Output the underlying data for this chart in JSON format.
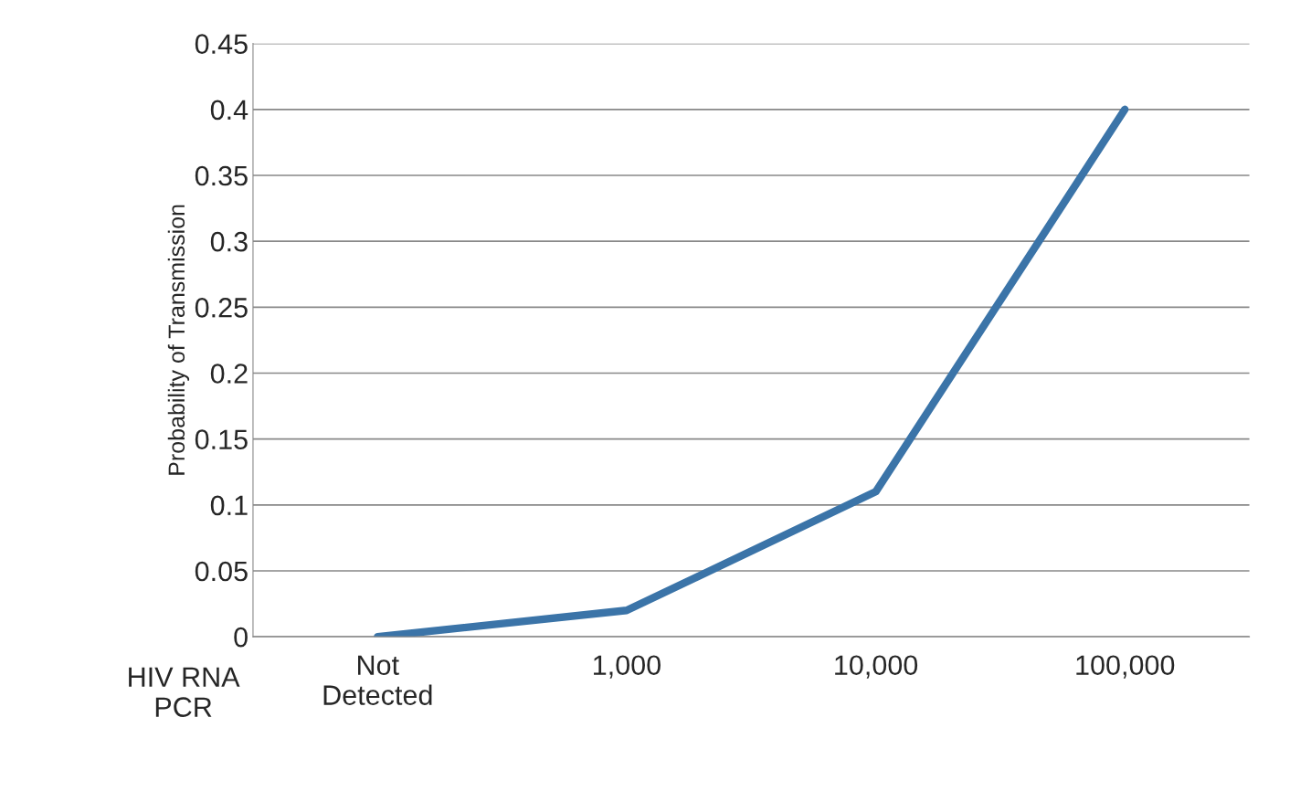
{
  "chart_data": {
    "type": "line",
    "xlabel": "HIV RNA\nPCR",
    "ylabel": "Probability of Transmission",
    "categories": [
      "Not\nDetected",
      "1,000",
      "10,000",
      "100,000"
    ],
    "series": [
      {
        "color": "#3b74a8",
        "values": [
          0,
          0.02,
          0.11,
          0.4
        ]
      }
    ],
    "ylim": [
      0,
      0.45
    ],
    "yticks": [
      0,
      0.05,
      0.1,
      0.15,
      0.2,
      0.25,
      0.3,
      0.35,
      0.4,
      0.45
    ],
    "grid": "y",
    "marker": "none",
    "line_style": "solid",
    "legend": false
  }
}
